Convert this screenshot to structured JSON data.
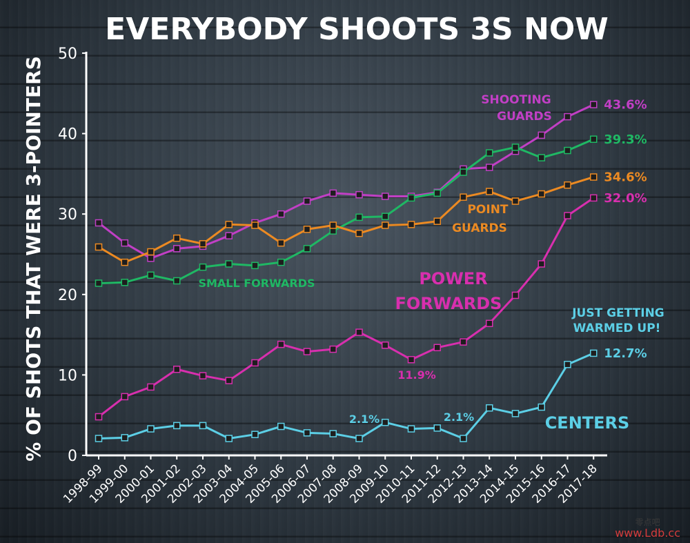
{
  "chart_data": {
    "type": "line",
    "title": "EVERYBODY SHOOTS 3S NOW",
    "ylabel": "% OF SHOTS THAT WERE 3-POINTERS",
    "ylim": [
      0,
      50
    ],
    "yticks": [
      "0",
      "10",
      "20",
      "30",
      "40",
      "50"
    ],
    "grid": false,
    "categories": [
      "1998-99",
      "1999-00",
      "2000-01",
      "2001-02",
      "2002-03",
      "2003-04",
      "2004-05",
      "2005-06",
      "2006-07",
      "2007-08",
      "2008-09",
      "2009-10",
      "2010-11",
      "2011-12",
      "2012-13",
      "2013-14",
      "2014-15",
      "2015-16",
      "2016-17",
      "2017-18"
    ],
    "series": [
      {
        "name": "SHOOTING GUARDS",
        "color": "#c13fc5",
        "values": [
          28.9,
          26.4,
          24.5,
          25.7,
          26.0,
          27.3,
          28.9,
          30.0,
          31.6,
          32.6,
          32.4,
          32.2,
          32.2,
          32.7,
          35.6,
          35.8,
          37.8,
          39.8,
          42.1,
          43.6
        ],
        "end_label": "43.6%"
      },
      {
        "name": "SMALL FORWARDS",
        "color": "#1fb864",
        "values": [
          21.4,
          21.5,
          22.4,
          21.7,
          23.4,
          23.8,
          23.6,
          24.0,
          25.7,
          27.9,
          29.6,
          29.7,
          32.0,
          32.6,
          35.2,
          37.6,
          38.3,
          37.0,
          37.9,
          39.3
        ],
        "end_label": "39.3%"
      },
      {
        "name": "POINT GUARDS",
        "color": "#ec8a22",
        "values": [
          25.9,
          24.0,
          25.3,
          27.0,
          26.3,
          28.7,
          28.6,
          26.4,
          28.1,
          28.6,
          27.6,
          28.6,
          28.7,
          29.1,
          32.1,
          32.8,
          31.6,
          32.5,
          33.6,
          34.6
        ],
        "end_label": "34.6%"
      },
      {
        "name": "POWER FORWARDS",
        "color": "#d82fae",
        "values": [
          4.8,
          7.3,
          8.5,
          10.7,
          9.9,
          9.3,
          11.5,
          13.8,
          12.9,
          13.2,
          15.3,
          13.7,
          11.9,
          13.4,
          14.1,
          16.4,
          19.9,
          23.8,
          29.8,
          32.0
        ],
        "end_label": "32.0%"
      },
      {
        "name": "CENTERS",
        "color": "#5ccfe6",
        "values": [
          2.1,
          2.2,
          3.3,
          3.7,
          3.7,
          2.1,
          2.6,
          3.6,
          2.8,
          2.7,
          2.1,
          4.1,
          3.3,
          3.4,
          2.1,
          5.9,
          5.2,
          6.0,
          11.3,
          12.7
        ],
        "end_label": "12.7%"
      }
    ],
    "annotations": [
      {
        "text": "SHOOTING",
        "color": "#c13fc5",
        "size": 17
      },
      {
        "text": "GUARDS",
        "color": "#c13fc5",
        "size": 17
      },
      {
        "text": "POINT",
        "color": "#ec8a22",
        "size": 17
      },
      {
        "text": "GUARDS",
        "color": "#ec8a22",
        "size": 17
      },
      {
        "text": "SMALL FORWARDS",
        "color": "#1fb864",
        "size": 16
      },
      {
        "text": "POWER",
        "color": "#d82fae",
        "size": 24
      },
      {
        "text": "FORWARDS",
        "color": "#d82fae",
        "size": 24
      },
      {
        "text": "11.9%",
        "color": "#d82fae",
        "size": 16
      },
      {
        "text": "JUST GETTING",
        "color": "#5ccfe6",
        "size": 17
      },
      {
        "text": "WARMED UP!",
        "color": "#5ccfe6",
        "size": 17
      },
      {
        "text": "2.1%",
        "color": "#5ccfe6",
        "size": 16
      },
      {
        "text": "2.1%",
        "color": "#5ccfe6",
        "size": 16
      },
      {
        "text": "CENTERS",
        "color": "#5ccfe6",
        "size": 24
      }
    ]
  },
  "watermark": {
    "cn": "零点吧",
    "url": "www.Ldb.cc",
    "color": "#d23b3b"
  }
}
